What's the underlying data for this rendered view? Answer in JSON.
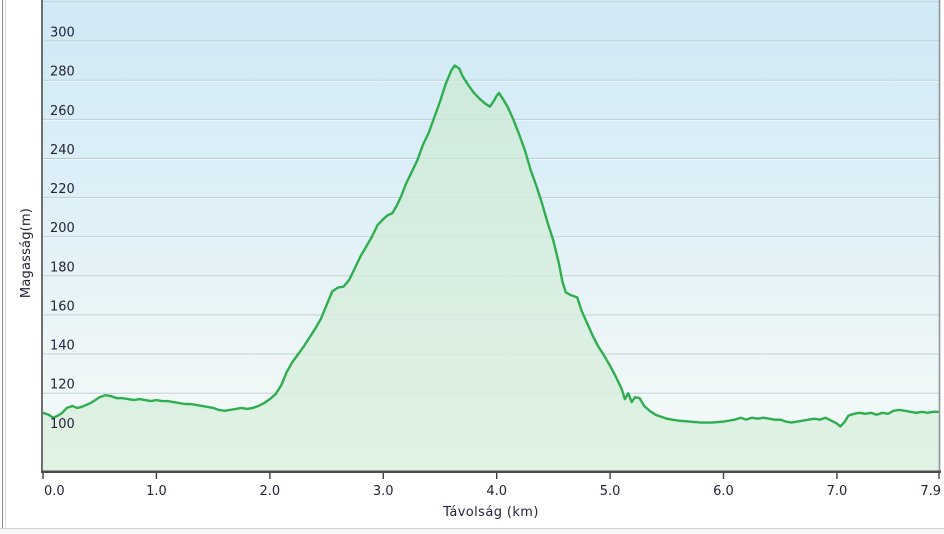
{
  "window": {
    "background": "#ffffff",
    "left_edge_color": "#8d8d8d",
    "bottom_divider_color": "#ccd4da"
  },
  "chart_data": {
    "type": "area",
    "title": "",
    "xlabel": "Távolság (km)",
    "ylabel": "Magasság(m)",
    "xlim": [
      0,
      7.9
    ],
    "ylim": [
      80,
      321
    ],
    "grid": "horizontal",
    "legend": "none",
    "x_ticks": [
      {
        "km": 0.0,
        "label": "0.0",
        "align": "start"
      },
      {
        "km": 1.0,
        "label": "1.0",
        "align": "middle"
      },
      {
        "km": 2.0,
        "label": "2.0",
        "align": "middle"
      },
      {
        "km": 3.0,
        "label": "3.0",
        "align": "middle"
      },
      {
        "km": 4.0,
        "label": "4.0",
        "align": "middle"
      },
      {
        "km": 5.0,
        "label": "5.0",
        "align": "middle"
      },
      {
        "km": 6.0,
        "label": "6.0",
        "align": "middle"
      },
      {
        "km": 7.0,
        "label": "7.0",
        "align": "middle"
      },
      {
        "km": 7.9,
        "label": "7.9",
        "align": "end"
      }
    ],
    "y_ticks": [
      {
        "m": 300,
        "label": "300"
      },
      {
        "m": 280,
        "label": "280"
      },
      {
        "m": 260,
        "label": "260"
      },
      {
        "m": 240,
        "label": "240"
      },
      {
        "m": 220,
        "label": "220"
      },
      {
        "m": 200,
        "label": "200"
      },
      {
        "m": 180,
        "label": "180"
      },
      {
        "m": 160,
        "label": "160"
      },
      {
        "m": 140,
        "label": "140"
      },
      {
        "m": 120,
        "label": "120"
      },
      {
        "m": 100,
        "label": "100"
      }
    ],
    "colors": {
      "line": "#2fae4f",
      "fill_top": "rgba(204,233,211,0.72)",
      "fill_bottom": "rgba(221,241,226,0.90)",
      "bg_top": "#cfe9f6",
      "bg_mid": "#ddeff7",
      "bg_low": "#edf6f7",
      "bg_bottom": "#f6fbf8",
      "grid": "#b4cad2",
      "grid_highlight": "rgba(255,255,255,0.55)",
      "axis_bottom": "#4c4c4c",
      "axis_left": "#6f6f6f",
      "axis_right": "#8d979c",
      "tick": "#3e3e3e",
      "text": "#23233a"
    },
    "series": [
      {
        "name": "Magasság",
        "units": {
          "x": "km",
          "y": "m"
        },
        "points": [
          [
            0.0,
            110
          ],
          [
            0.05,
            109
          ],
          [
            0.09,
            107.5
          ],
          [
            0.13,
            108.5
          ],
          [
            0.17,
            110
          ],
          [
            0.21,
            112.5
          ],
          [
            0.26,
            113.5
          ],
          [
            0.3,
            112.5
          ],
          [
            0.34,
            113
          ],
          [
            0.38,
            114
          ],
          [
            0.42,
            115
          ],
          [
            0.46,
            116.5
          ],
          [
            0.5,
            118
          ],
          [
            0.55,
            119
          ],
          [
            0.6,
            118.5
          ],
          [
            0.65,
            117.5
          ],
          [
            0.7,
            117.5
          ],
          [
            0.75,
            117
          ],
          [
            0.8,
            116.5
          ],
          [
            0.85,
            117
          ],
          [
            0.9,
            116.5
          ],
          [
            0.95,
            116
          ],
          [
            1.0,
            116.5
          ],
          [
            1.05,
            116
          ],
          [
            1.1,
            116
          ],
          [
            1.15,
            115.5
          ],
          [
            1.2,
            115
          ],
          [
            1.25,
            114.5
          ],
          [
            1.3,
            114.5
          ],
          [
            1.35,
            114
          ],
          [
            1.4,
            113.5
          ],
          [
            1.45,
            113
          ],
          [
            1.5,
            112.5
          ],
          [
            1.55,
            111.5
          ],
          [
            1.6,
            111
          ],
          [
            1.65,
            111.5
          ],
          [
            1.7,
            112
          ],
          [
            1.75,
            112.5
          ],
          [
            1.8,
            112
          ],
          [
            1.85,
            112.5
          ],
          [
            1.9,
            113.5
          ],
          [
            1.95,
            115
          ],
          [
            2.0,
            117
          ],
          [
            2.05,
            119.5
          ],
          [
            2.1,
            124
          ],
          [
            2.15,
            131
          ],
          [
            2.2,
            136
          ],
          [
            2.25,
            140
          ],
          [
            2.3,
            144
          ],
          [
            2.35,
            148.5
          ],
          [
            2.4,
            153
          ],
          [
            2.45,
            158
          ],
          [
            2.5,
            165
          ],
          [
            2.55,
            172
          ],
          [
            2.6,
            174
          ],
          [
            2.65,
            174.5
          ],
          [
            2.7,
            178
          ],
          [
            2.75,
            184
          ],
          [
            2.8,
            190
          ],
          [
            2.85,
            195
          ],
          [
            2.9,
            200
          ],
          [
            2.95,
            206
          ],
          [
            3.0,
            209
          ],
          [
            3.04,
            211
          ],
          [
            3.08,
            212
          ],
          [
            3.12,
            216
          ],
          [
            3.16,
            221
          ],
          [
            3.2,
            227
          ],
          [
            3.25,
            233
          ],
          [
            3.3,
            239
          ],
          [
            3.35,
            247
          ],
          [
            3.4,
            253
          ],
          [
            3.45,
            261
          ],
          [
            3.5,
            269
          ],
          [
            3.55,
            278
          ],
          [
            3.6,
            285
          ],
          [
            3.63,
            287.5
          ],
          [
            3.67,
            286
          ],
          [
            3.7,
            282
          ],
          [
            3.75,
            277.5
          ],
          [
            3.8,
            273.5
          ],
          [
            3.85,
            270.5
          ],
          [
            3.9,
            268
          ],
          [
            3.94,
            266.5
          ],
          [
            3.97,
            269
          ],
          [
            4.0,
            272
          ],
          [
            4.02,
            273.5
          ],
          [
            4.06,
            270
          ],
          [
            4.1,
            266
          ],
          [
            4.15,
            259.5
          ],
          [
            4.2,
            252
          ],
          [
            4.25,
            244
          ],
          [
            4.3,
            234
          ],
          [
            4.35,
            226
          ],
          [
            4.4,
            217
          ],
          [
            4.45,
            207
          ],
          [
            4.5,
            198
          ],
          [
            4.55,
            186
          ],
          [
            4.58,
            177
          ],
          [
            4.61,
            171.5
          ],
          [
            4.66,
            170
          ],
          [
            4.71,
            169
          ],
          [
            4.75,
            162
          ],
          [
            4.8,
            155.5
          ],
          [
            4.85,
            149
          ],
          [
            4.9,
            143.5
          ],
          [
            4.95,
            139
          ],
          [
            5.0,
            134
          ],
          [
            5.05,
            128.5
          ],
          [
            5.1,
            122.5
          ],
          [
            5.13,
            117
          ],
          [
            5.16,
            120
          ],
          [
            5.19,
            115.5
          ],
          [
            5.22,
            118
          ],
          [
            5.26,
            117.5
          ],
          [
            5.3,
            113.5
          ],
          [
            5.35,
            111
          ],
          [
            5.4,
            109
          ],
          [
            5.45,
            108
          ],
          [
            5.5,
            107
          ],
          [
            5.55,
            106.5
          ],
          [
            5.6,
            106
          ],
          [
            5.7,
            105.5
          ],
          [
            5.8,
            105
          ],
          [
            5.9,
            105
          ],
          [
            6.0,
            105.5
          ],
          [
            6.05,
            106
          ],
          [
            6.1,
            106.5
          ],
          [
            6.15,
            107.5
          ],
          [
            6.2,
            106.5
          ],
          [
            6.25,
            107.5
          ],
          [
            6.3,
            107
          ],
          [
            6.35,
            107.5
          ],
          [
            6.4,
            107
          ],
          [
            6.45,
            106.5
          ],
          [
            6.5,
            106.5
          ],
          [
            6.55,
            105.5
          ],
          [
            6.6,
            105
          ],
          [
            6.65,
            105.5
          ],
          [
            6.7,
            106
          ],
          [
            6.75,
            106.5
          ],
          [
            6.8,
            107
          ],
          [
            6.85,
            106.5
          ],
          [
            6.9,
            107.5
          ],
          [
            6.95,
            106
          ],
          [
            7.0,
            104.5
          ],
          [
            7.03,
            103
          ],
          [
            7.07,
            105.5
          ],
          [
            7.1,
            108.5
          ],
          [
            7.15,
            109.5
          ],
          [
            7.2,
            110
          ],
          [
            7.25,
            109.5
          ],
          [
            7.3,
            110
          ],
          [
            7.35,
            109
          ],
          [
            7.4,
            110
          ],
          [
            7.45,
            109.5
          ],
          [
            7.5,
            111
          ],
          [
            7.55,
            111.5
          ],
          [
            7.6,
            111
          ],
          [
            7.65,
            110.5
          ],
          [
            7.7,
            110
          ],
          [
            7.75,
            110.5
          ],
          [
            7.8,
            110
          ],
          [
            7.85,
            110.5
          ],
          [
            7.9,
            110.5
          ]
        ]
      }
    ]
  }
}
